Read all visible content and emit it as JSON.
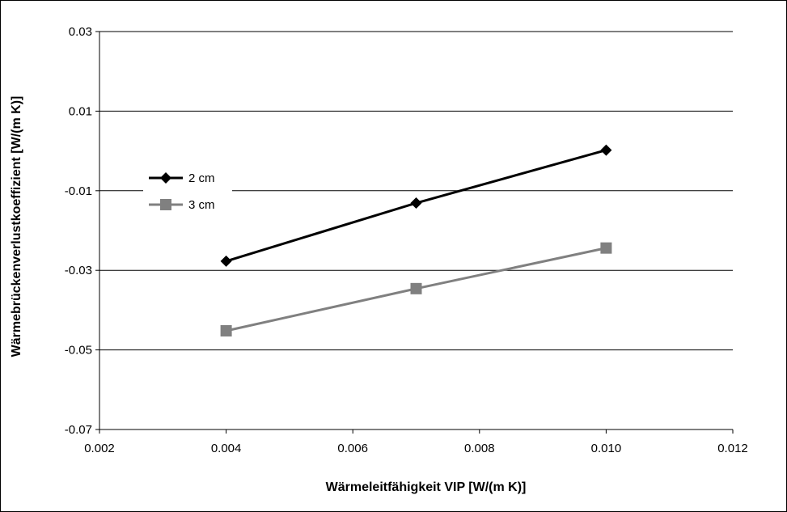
{
  "chart_data": {
    "type": "line",
    "title": "",
    "xlabel": "Wärmeleitfähigkeit VIP [W/(m K)]",
    "ylabel": "Wärmebrückenverlustkoeffizient [W/(m K)]",
    "xlim": [
      0.002,
      0.012
    ],
    "ylim": [
      -0.07,
      0.03
    ],
    "x_ticks": [
      "0.002",
      "0.004",
      "0.006",
      "0.008",
      "0.010",
      "0.012"
    ],
    "y_ticks": [
      "0.03",
      "0.01",
      "-0.01",
      "-0.03",
      "-0.05",
      "-0.07"
    ],
    "grid": "horizontal",
    "legend_position": "left",
    "series": [
      {
        "name": "2 cm",
        "color": "#000000",
        "marker": "diamond",
        "x": [
          0.004,
          0.007,
          0.01
        ],
        "y": [
          -0.0277,
          -0.0131,
          0.0002
        ]
      },
      {
        "name": "3 cm",
        "color": "#808080",
        "marker": "square",
        "x": [
          0.004,
          0.007,
          0.01
        ],
        "y": [
          -0.0452,
          -0.0346,
          -0.0244
        ]
      }
    ]
  }
}
